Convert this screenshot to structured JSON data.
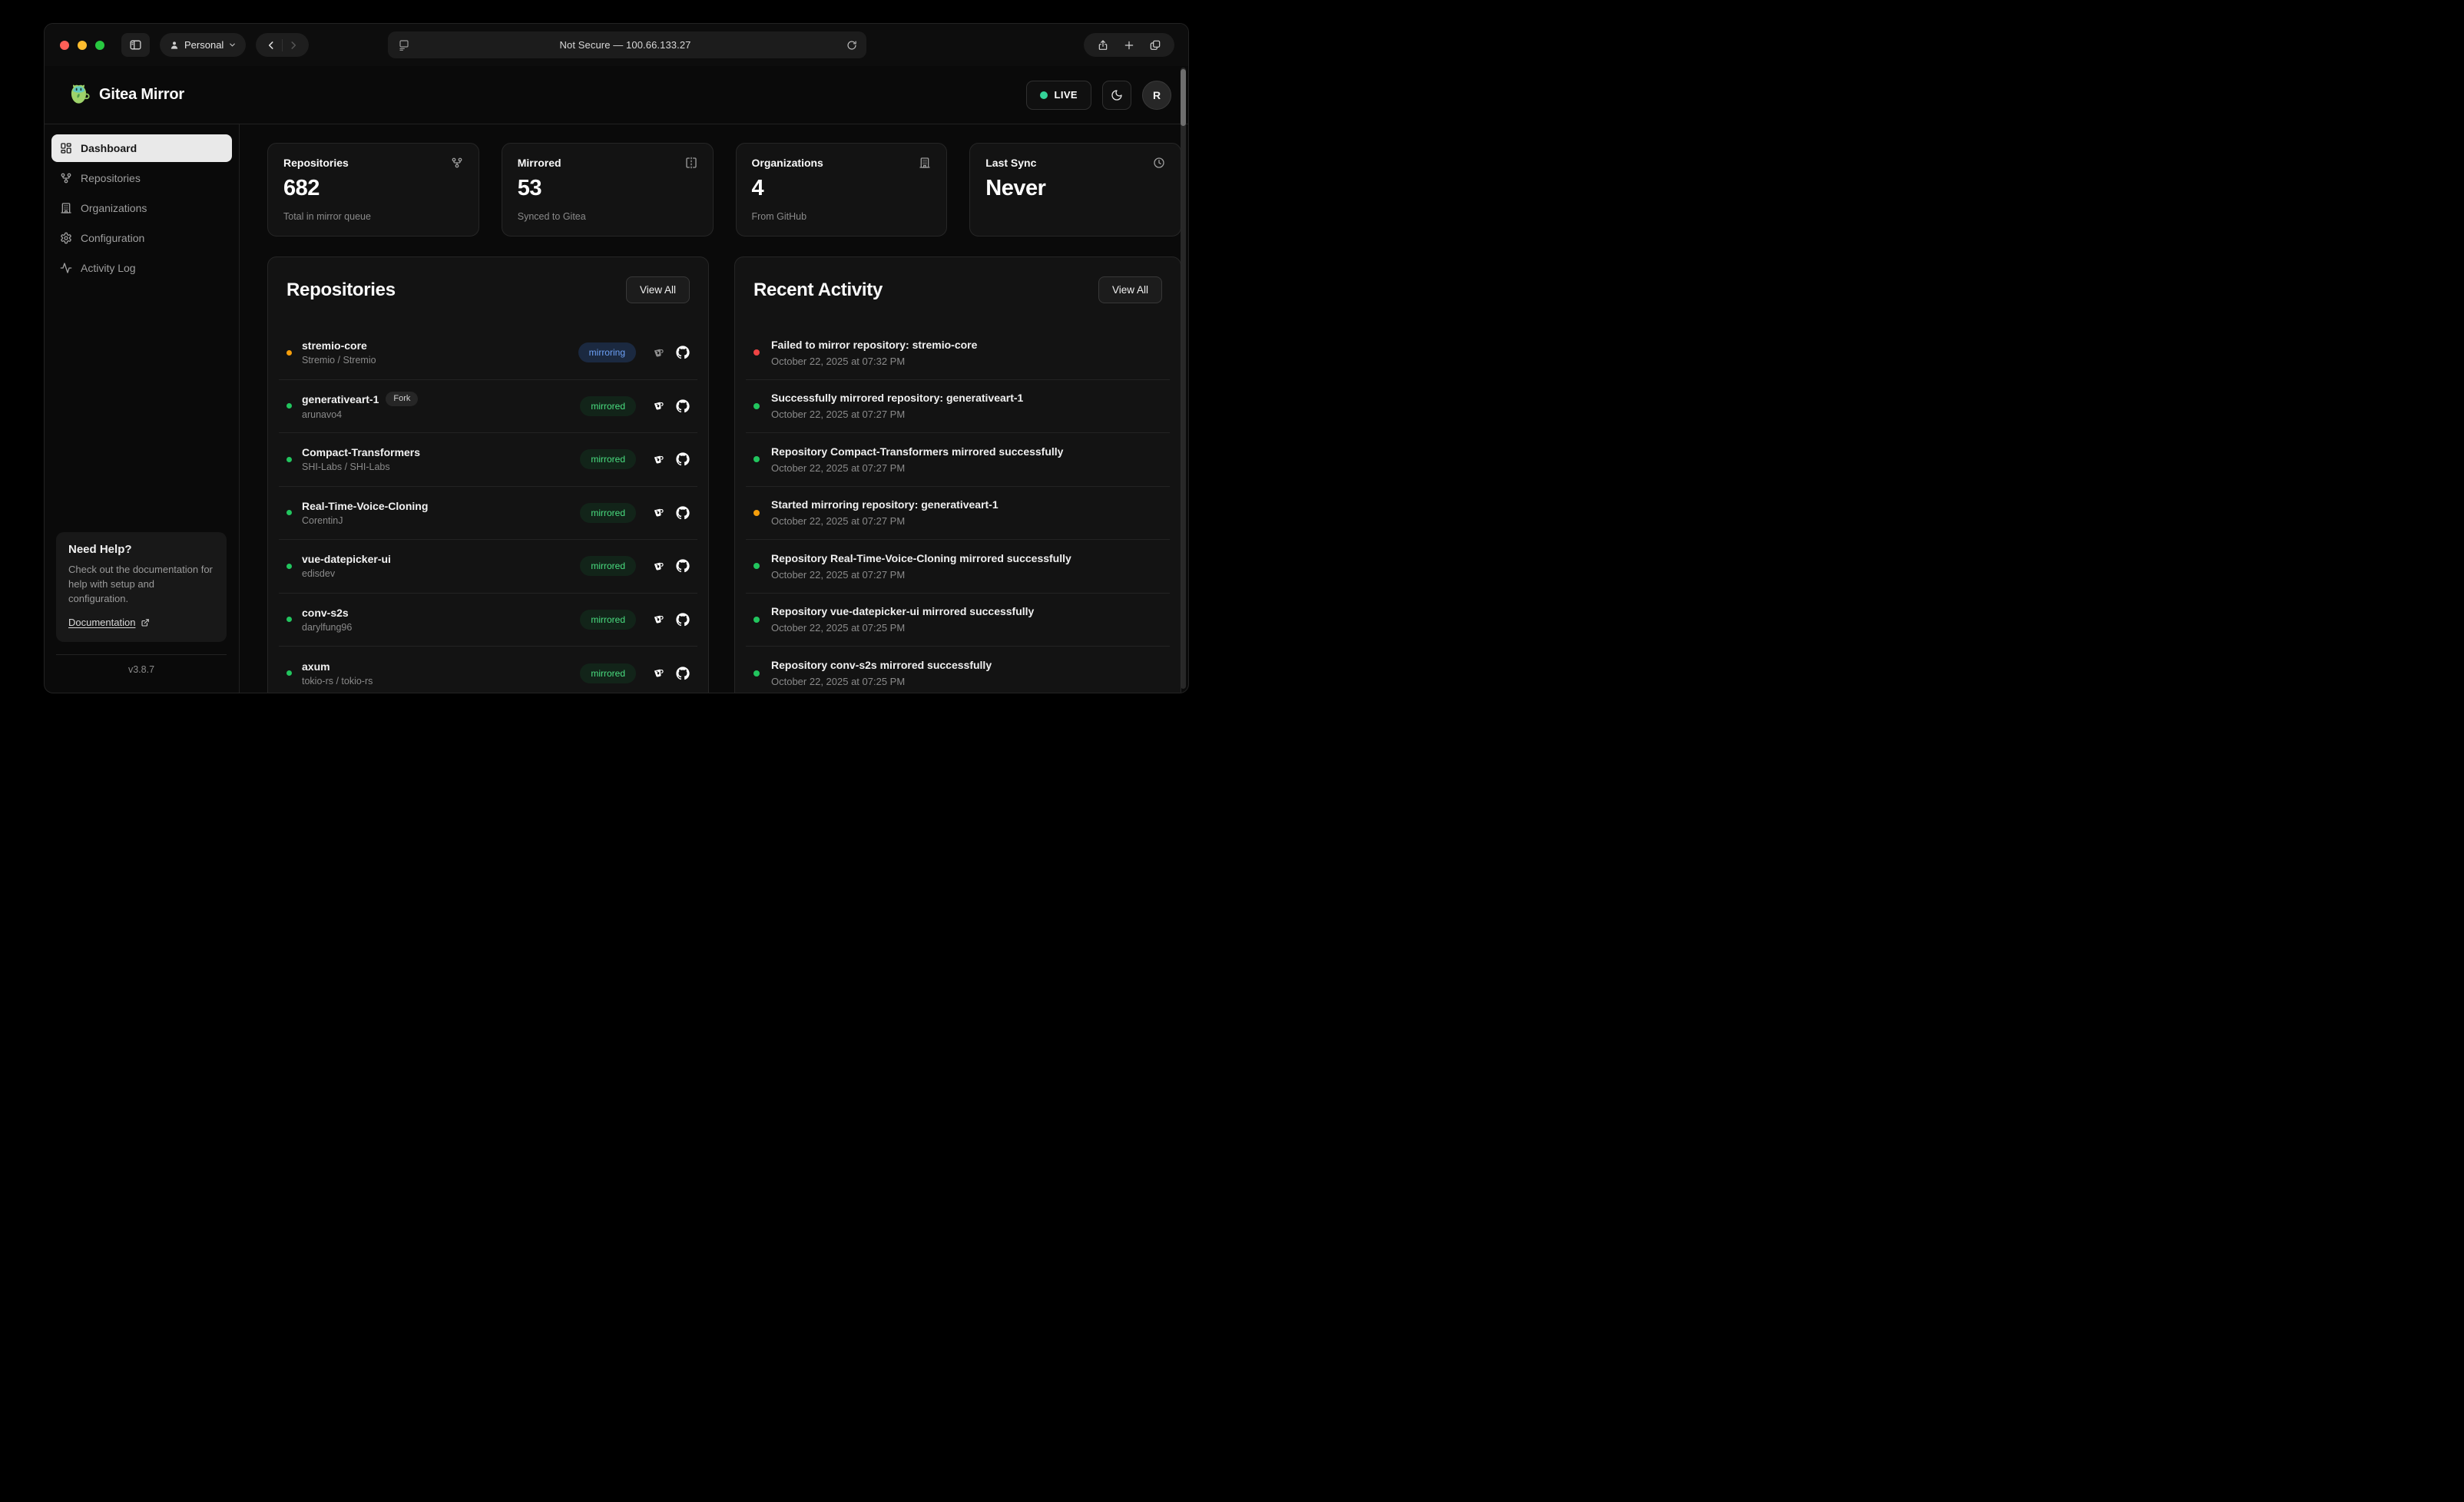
{
  "browser": {
    "profile_label": "Personal",
    "url_text": "Not Secure — 100.66.133.27"
  },
  "header": {
    "app_title": "Gitea Mirror",
    "live_label": "LIVE",
    "avatar_initial": "R"
  },
  "sidebar": {
    "items": [
      {
        "label": "Dashboard",
        "icon": "dashboard-icon",
        "active": true
      },
      {
        "label": "Repositories",
        "icon": "git-fork-icon",
        "active": false
      },
      {
        "label": "Organizations",
        "icon": "building-icon",
        "active": false
      },
      {
        "label": "Configuration",
        "icon": "gear-icon",
        "active": false
      },
      {
        "label": "Activity Log",
        "icon": "activity-icon",
        "active": false
      }
    ],
    "help": {
      "title": "Need Help?",
      "body": "Check out the documentation for help with setup and configuration.",
      "link_label": "Documentation"
    },
    "version": "v3.8.7"
  },
  "stats": [
    {
      "title": "Repositories",
      "icon": "git-fork-icon",
      "value": "682",
      "subtitle": "Total in mirror queue"
    },
    {
      "title": "Mirrored",
      "icon": "mirror-icon",
      "value": "53",
      "subtitle": "Synced to Gitea"
    },
    {
      "title": "Organizations",
      "icon": "building-icon",
      "value": "4",
      "subtitle": "From GitHub"
    },
    {
      "title": "Last Sync",
      "icon": "clock-icon",
      "value": "Never",
      "subtitle": ""
    }
  ],
  "repositories_panel": {
    "title": "Repositories",
    "view_all_label": "View All",
    "rows": [
      {
        "name": "stremio-core",
        "owner": "Stremio / Stremio",
        "status": "mirroring",
        "dot": "orange",
        "fork": false,
        "fork_label": ""
      },
      {
        "name": "generativeart-1",
        "owner": "arunavo4",
        "status": "mirrored",
        "dot": "green",
        "fork": true,
        "fork_label": "Fork"
      },
      {
        "name": "Compact-Transformers",
        "owner": "SHI-Labs / SHI-Labs",
        "status": "mirrored",
        "dot": "green",
        "fork": false,
        "fork_label": ""
      },
      {
        "name": "Real-Time-Voice-Cloning",
        "owner": "CorentinJ",
        "status": "mirrored",
        "dot": "green",
        "fork": false,
        "fork_label": ""
      },
      {
        "name": "vue-datepicker-ui",
        "owner": "edisdev",
        "status": "mirrored",
        "dot": "green",
        "fork": false,
        "fork_label": ""
      },
      {
        "name": "conv-s2s",
        "owner": "darylfung96",
        "status": "mirrored",
        "dot": "green",
        "fork": false,
        "fork_label": ""
      },
      {
        "name": "axum",
        "owner": "tokio-rs / tokio-rs",
        "status": "mirrored",
        "dot": "green",
        "fork": false,
        "fork_label": ""
      }
    ]
  },
  "activity_panel": {
    "title": "Recent Activity",
    "view_all_label": "View All",
    "rows": [
      {
        "message": "Failed to mirror repository: stremio-core",
        "timestamp": "October 22, 2025 at 07:32 PM",
        "dot": "red"
      },
      {
        "message": "Successfully mirrored repository: generativeart-1",
        "timestamp": "October 22, 2025 at 07:27 PM",
        "dot": "green"
      },
      {
        "message": "Repository Compact-Transformers mirrored successfully",
        "timestamp": "October 22, 2025 at 07:27 PM",
        "dot": "green"
      },
      {
        "message": "Started mirroring repository: generativeart-1",
        "timestamp": "October 22, 2025 at 07:27 PM",
        "dot": "orange"
      },
      {
        "message": "Repository Real-Time-Voice-Cloning mirrored successfully",
        "timestamp": "October 22, 2025 at 07:27 PM",
        "dot": "green"
      },
      {
        "message": "Repository vue-datepicker-ui mirrored successfully",
        "timestamp": "October 22, 2025 at 07:25 PM",
        "dot": "green"
      },
      {
        "message": "Repository conv-s2s mirrored successfully",
        "timestamp": "October 22, 2025 at 07:25 PM",
        "dot": "green"
      }
    ]
  },
  "colors": {
    "status_green": "#22c55e",
    "status_orange": "#f59e0b",
    "status_red": "#ef4444",
    "live_dot": "#34d399",
    "traffic_close": "#ff5f57",
    "traffic_minimize": "#febc2e",
    "traffic_zoom": "#28c840",
    "badge_mirroring_text": "#6ca0f6",
    "badge_mirrored_text": "#4ade80"
  }
}
